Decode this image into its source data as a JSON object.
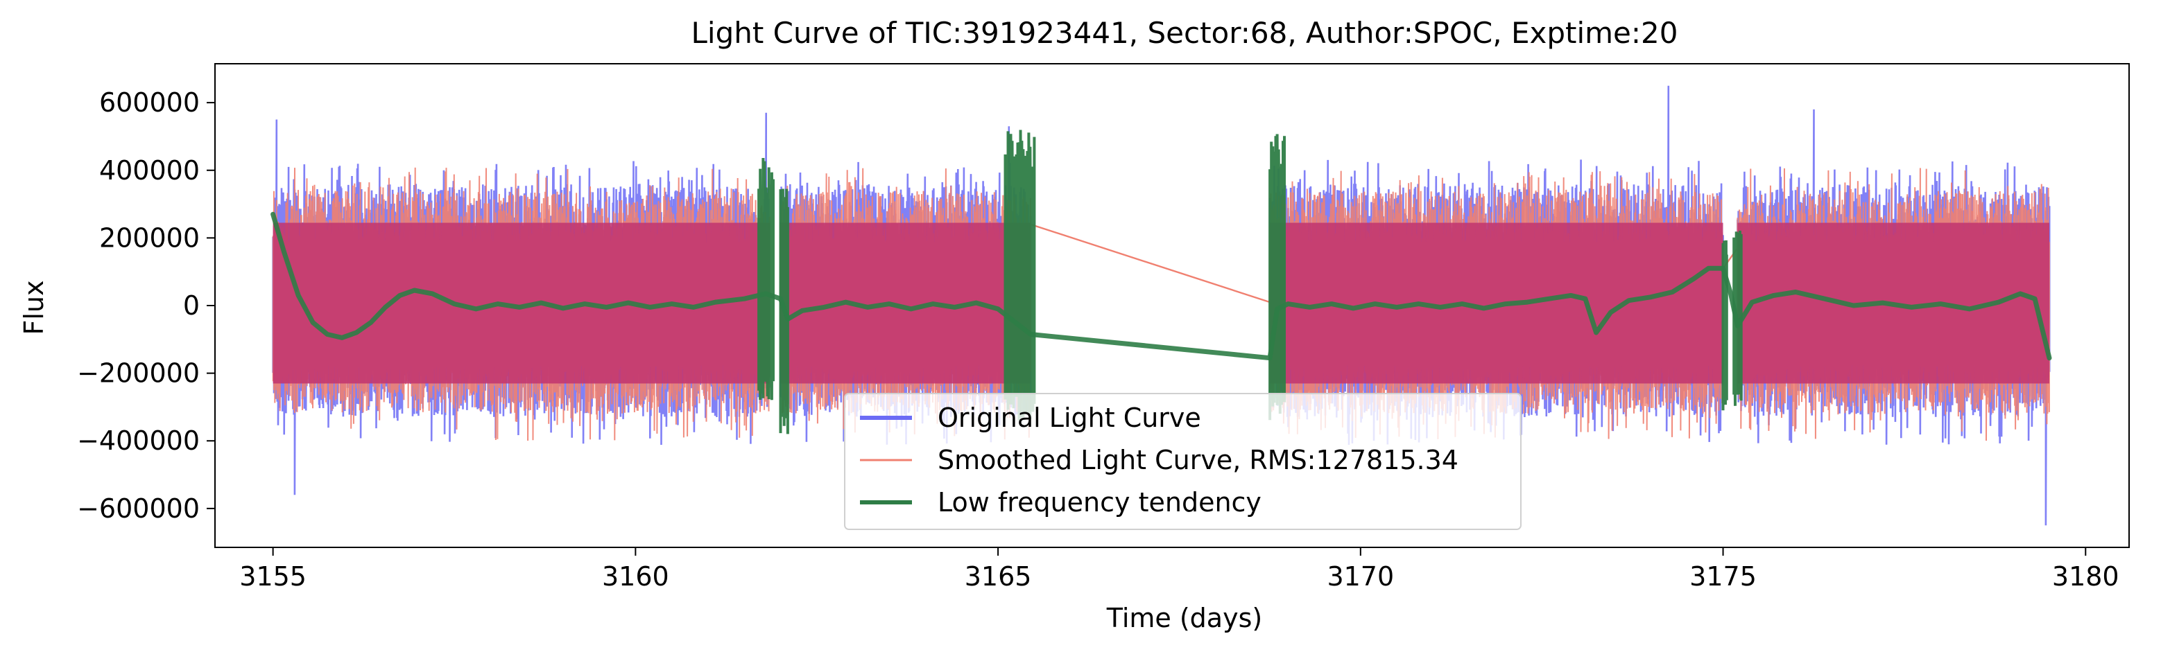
{
  "chart_data": {
    "type": "line",
    "title": "Light Curve of TIC:391923441, Sector:68, Author:SPOC, Exptime:20",
    "xlabel": "Time (days)",
    "ylabel": "Flux",
    "xlim": [
      3154.2,
      3180.6
    ],
    "ylim": [
      -715000,
      715000
    ],
    "x_ticks": [
      3155,
      3160,
      3165,
      3170,
      3175,
      3180
    ],
    "x_tick_labels": [
      "3155",
      "3160",
      "3165",
      "3170",
      "3175",
      "3180"
    ],
    "y_ticks": [
      -600000,
      -400000,
      -200000,
      0,
      200000,
      400000,
      600000
    ],
    "y_tick_labels": [
      "−600000",
      "−400000",
      "−200000",
      "0",
      "200000",
      "400000",
      "600000"
    ],
    "grid": false,
    "legend_position": "lower center",
    "data_segments": [
      [
        3155.0,
        3161.85
      ],
      [
        3162.0,
        3165.45
      ],
      [
        3168.75,
        3175.0
      ],
      [
        3175.2,
        3179.5
      ]
    ],
    "series": [
      {
        "name": "Original Light Curve",
        "color": "#6b6bf5",
        "opacity": 0.85,
        "typical_range": [
          -330000,
          360000
        ],
        "extremes": [
          {
            "x": 3155.05,
            "y": 550000
          },
          {
            "x": 3155.3,
            "y": -560000
          },
          {
            "x": 3161.8,
            "y": 570000
          },
          {
            "x": 3165.15,
            "y": 530000
          },
          {
            "x": 3174.25,
            "y": 650000
          },
          {
            "x": 3176.25,
            "y": 580000
          },
          {
            "x": 3179.45,
            "y": -650000
          }
        ]
      },
      {
        "name": "Smoothed Light Curve, RMS:127815.34",
        "color": "#f08070",
        "opacity": 0.9,
        "rms": 127815.34,
        "typical_range": [
          -320000,
          340000
        ],
        "gap_connectors": [
          [
            [
              3165.45,
              240000
            ],
            [
              3168.75,
              10000
            ]
          ],
          [
            [
              3175.0,
              110000
            ],
            [
              3175.2,
              170000
            ]
          ]
        ]
      },
      {
        "name": "Low frequency tendency",
        "color": "#2e7d46",
        "opacity": 0.9,
        "points": [
          [
            3155.0,
            270000
          ],
          [
            3155.15,
            160000
          ],
          [
            3155.35,
            30000
          ],
          [
            3155.55,
            -50000
          ],
          [
            3155.75,
            -85000
          ],
          [
            3155.95,
            -95000
          ],
          [
            3156.15,
            -80000
          ],
          [
            3156.35,
            -50000
          ],
          [
            3156.55,
            -5000
          ],
          [
            3156.75,
            30000
          ],
          [
            3156.95,
            45000
          ],
          [
            3157.2,
            35000
          ],
          [
            3157.5,
            5000
          ],
          [
            3157.8,
            -10000
          ],
          [
            3158.1,
            5000
          ],
          [
            3158.4,
            -5000
          ],
          [
            3158.7,
            8000
          ],
          [
            3159.0,
            -8000
          ],
          [
            3159.3,
            5000
          ],
          [
            3159.6,
            -5000
          ],
          [
            3159.9,
            8000
          ],
          [
            3160.2,
            -5000
          ],
          [
            3160.5,
            5000
          ],
          [
            3160.8,
            -5000
          ],
          [
            3161.1,
            10000
          ],
          [
            3161.5,
            20000
          ],
          [
            3161.8,
            35000
          ],
          [
            3162.0,
            20000
          ],
          [
            3162.1,
            -40000
          ],
          [
            3162.3,
            -15000
          ],
          [
            3162.6,
            -5000
          ],
          [
            3162.9,
            10000
          ],
          [
            3163.2,
            -5000
          ],
          [
            3163.5,
            5000
          ],
          [
            3163.8,
            -10000
          ],
          [
            3164.1,
            5000
          ],
          [
            3164.4,
            -5000
          ],
          [
            3164.7,
            8000
          ],
          [
            3165.0,
            -10000
          ],
          [
            3165.45,
            -85000
          ],
          [
            3168.75,
            -155000
          ],
          [
            3168.85,
            -10000
          ],
          [
            3169.0,
            5000
          ],
          [
            3169.3,
            -5000
          ],
          [
            3169.6,
            5000
          ],
          [
            3169.9,
            -8000
          ],
          [
            3170.2,
            5000
          ],
          [
            3170.5,
            -5000
          ],
          [
            3170.8,
            5000
          ],
          [
            3171.1,
            -5000
          ],
          [
            3171.4,
            5000
          ],
          [
            3171.7,
            -8000
          ],
          [
            3172.0,
            5000
          ],
          [
            3172.3,
            10000
          ],
          [
            3172.6,
            20000
          ],
          [
            3172.9,
            30000
          ],
          [
            3173.1,
            20000
          ],
          [
            3173.25,
            -80000
          ],
          [
            3173.45,
            -20000
          ],
          [
            3173.7,
            15000
          ],
          [
            3174.0,
            25000
          ],
          [
            3174.3,
            40000
          ],
          [
            3174.6,
            80000
          ],
          [
            3174.8,
            110000
          ],
          [
            3175.0,
            110000
          ],
          [
            3175.1,
            40000
          ],
          [
            3175.2,
            -60000
          ],
          [
            3175.4,
            10000
          ],
          [
            3175.7,
            30000
          ],
          [
            3176.0,
            40000
          ],
          [
            3176.4,
            20000
          ],
          [
            3176.8,
            0
          ],
          [
            3177.2,
            8000
          ],
          [
            3177.6,
            -5000
          ],
          [
            3178.0,
            5000
          ],
          [
            3178.4,
            -10000
          ],
          [
            3178.8,
            10000
          ],
          [
            3179.1,
            35000
          ],
          [
            3179.3,
            20000
          ],
          [
            3179.5,
            -155000
          ]
        ],
        "transition_spikes": [
          {
            "x": [
              3161.7,
              3161.9
            ],
            "y": [
              -280000,
              440000
            ]
          },
          {
            "x": [
              3162.0,
              3162.1
            ],
            "y": [
              -380000,
              360000
            ]
          },
          {
            "x": [
              3165.1,
              3165.5
            ],
            "y": [
              -340000,
              520000
            ]
          },
          {
            "x": [
              3168.75,
              3168.95
            ],
            "y": [
              -340000,
              510000
            ]
          },
          {
            "x": [
              3175.0,
              3175.05
            ],
            "y": [
              -320000,
              200000
            ]
          },
          {
            "x": [
              3175.15,
              3175.25
            ],
            "y": [
              -300000,
              250000
            ]
          }
        ]
      }
    ]
  }
}
